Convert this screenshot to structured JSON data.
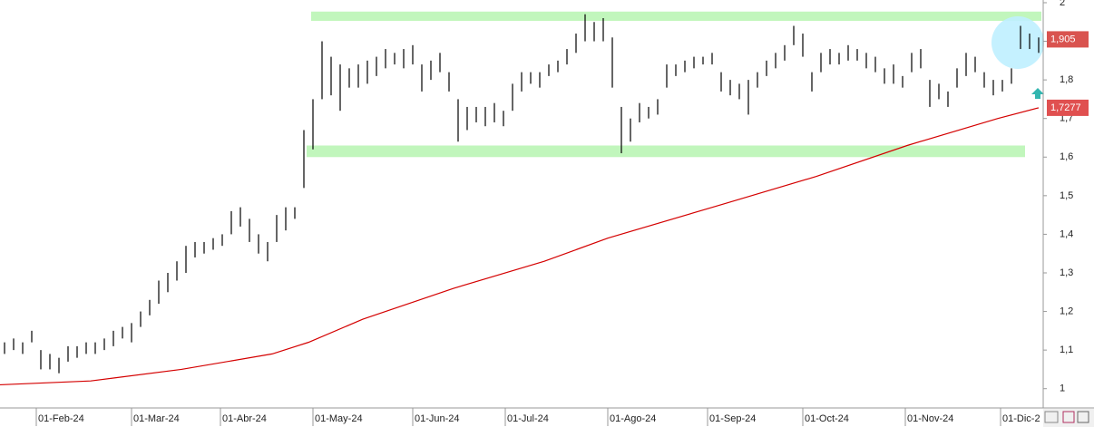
{
  "chart_data": {
    "type": "ohlc",
    "color": "#000000",
    "xlim": [
      -0.5,
      114.5
    ],
    "ylim": [
      0.95,
      2.007
    ],
    "xticks": [
      {
        "value": 3.5,
        "label": "01-Feb-24"
      },
      {
        "value": 14,
        "label": "01-Mar-24"
      },
      {
        "value": 23.8,
        "label": "01-Abr-24"
      },
      {
        "value": 34,
        "label": "01-May-24"
      },
      {
        "value": 45,
        "label": "01-Jun-24"
      },
      {
        "value": 55.2,
        "label": "01-Jul-24"
      },
      {
        "value": 66.5,
        "label": "01-Ago-24"
      },
      {
        "value": 77.5,
        "label": "01-Sep-24"
      },
      {
        "value": 88,
        "label": "01-Oct-24"
      },
      {
        "value": 99.3,
        "label": "01-Nov-24"
      },
      {
        "value": 109.8,
        "label": "01-Dic-2"
      }
    ],
    "yticks": [
      1,
      {
        "value": 1.1,
        "label": "1,1"
      },
      {
        "value": 1.2,
        "label": "1,2"
      },
      {
        "value": 1.3,
        "label": "1,3"
      },
      {
        "value": 1.4,
        "label": "1,4"
      },
      {
        "value": 1.5,
        "label": "1,5"
      },
      {
        "value": 1.6,
        "label": "1,6"
      },
      {
        "value": 1.7,
        "label": "1,7"
      },
      {
        "value": 1.8,
        "label": "1,8"
      },
      {
        "value": 1.9,
        "label": "1,9"
      },
      2
    ],
    "high": [
      1.12,
      1.13,
      1.12,
      1.15,
      1.1,
      1.09,
      1.08,
      1.11,
      1.11,
      1.12,
      1.12,
      1.13,
      1.15,
      1.16,
      1.17,
      1.2,
      1.23,
      1.28,
      1.3,
      1.33,
      1.37,
      1.38,
      1.38,
      1.39,
      1.4,
      1.46,
      1.47,
      1.44,
      1.4,
      1.38,
      1.45,
      1.47,
      1.47,
      1.67,
      1.75,
      1.9,
      1.86,
      1.84,
      1.83,
      1.84,
      1.85,
      1.86,
      1.88,
      1.87,
      1.88,
      1.89,
      1.84,
      1.85,
      1.87,
      1.82,
      1.75,
      1.73,
      1.73,
      1.73,
      1.74,
      1.72,
      1.79,
      1.82,
      1.82,
      1.82,
      1.84,
      1.85,
      1.88,
      1.92,
      1.97,
      1.95,
      1.96,
      1.91,
      1.73,
      1.7,
      1.74,
      1.73,
      1.75,
      1.84,
      1.84,
      1.85,
      1.86,
      1.86,
      1.87,
      1.82,
      1.8,
      1.79,
      1.8,
      1.82,
      1.85,
      1.87,
      1.89,
      1.94,
      1.92,
      1.82,
      1.87,
      1.88,
      1.87,
      1.89,
      1.88,
      1.87,
      1.86,
      1.83,
      1.84,
      1.81,
      1.87,
      1.88,
      1.8,
      1.79,
      1.77,
      1.83,
      1.87,
      1.86,
      1.82,
      1.8,
      1.8,
      1.83,
      1.94,
      1.92,
      1.91
    ],
    "low": [
      1.09,
      1.1,
      1.09,
      1.12,
      1.05,
      1.05,
      1.04,
      1.07,
      1.08,
      1.09,
      1.09,
      1.1,
      1.11,
      1.13,
      1.12,
      1.16,
      1.19,
      1.22,
      1.25,
      1.28,
      1.3,
      1.34,
      1.35,
      1.36,
      1.37,
      1.4,
      1.42,
      1.38,
      1.35,
      1.33,
      1.38,
      1.41,
      1.44,
      1.52,
      1.62,
      1.75,
      1.76,
      1.72,
      1.78,
      1.78,
      1.79,
      1.81,
      1.83,
      1.84,
      1.83,
      1.84,
      1.77,
      1.8,
      1.82,
      1.77,
      1.64,
      1.67,
      1.69,
      1.68,
      1.69,
      1.68,
      1.72,
      1.77,
      1.79,
      1.78,
      1.81,
      1.82,
      1.84,
      1.87,
      1.9,
      1.9,
      1.9,
      1.78,
      1.61,
      1.64,
      1.69,
      1.7,
      1.71,
      1.78,
      1.81,
      1.82,
      1.83,
      1.84,
      1.84,
      1.77,
      1.76,
      1.75,
      1.71,
      1.78,
      1.81,
      1.83,
      1.85,
      1.89,
      1.86,
      1.77,
      1.82,
      1.84,
      1.84,
      1.85,
      1.85,
      1.83,
      1.82,
      1.79,
      1.79,
      1.78,
      1.82,
      1.83,
      1.73,
      1.75,
      1.73,
      1.78,
      1.81,
      1.82,
      1.78,
      1.76,
      1.77,
      1.79,
      1.88,
      1.88,
      1.87
    ],
    "ma": {
      "color": "#d40000",
      "x": [
        -0.5,
        9.5,
        19.5,
        29.5,
        33.5,
        39.5,
        49.5,
        59.5,
        66.5,
        79.5,
        89.5,
        99.5,
        109.5,
        114
      ],
      "values": [
        1.01,
        1.02,
        1.05,
        1.09,
        1.12,
        1.18,
        1.26,
        1.33,
        1.39,
        1.48,
        1.55,
        1.63,
        1.7,
        1.7277
      ]
    },
    "bands": [
      {
        "x": [
          33.8,
          114.3
        ],
        "y": [
          1.953,
          1.977
        ]
      },
      {
        "x": [
          33.3,
          112.5
        ],
        "y": [
          1.6,
          1.63
        ]
      }
    ],
    "price_tags": [
      {
        "value": 1.905,
        "label": "1,905",
        "color": "#d9534f"
      },
      {
        "value": 1.7277,
        "label": "1,7277",
        "color": "#e05050"
      }
    ]
  }
}
